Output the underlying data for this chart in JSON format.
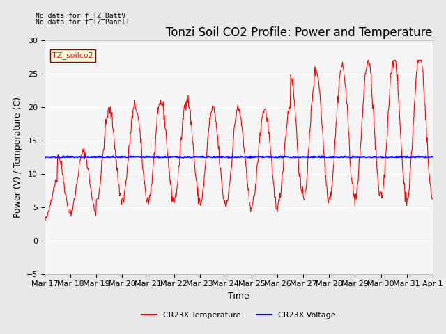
{
  "title": "Tonzi Soil CO2 Profile: Power and Temperature",
  "xlabel": "Time",
  "ylabel": "Power (V) / Temperature (C)",
  "ylim": [
    -5,
    30
  ],
  "yticks": [
    -5,
    0,
    5,
    10,
    15,
    20,
    25,
    30
  ],
  "x_labels": [
    "Mar 17",
    "Mar 18",
    "Mar 19",
    "Mar 20",
    "Mar 21",
    "Mar 22",
    "Mar 23",
    "Mar 24",
    "Mar 25",
    "Mar 26",
    "Mar 27",
    "Mar 28",
    "Mar 29",
    "Mar 30",
    "Mar 31",
    "Apr 1"
  ],
  "no_data_text1": "No data for f_TZ_BattV",
  "no_data_text2": "No data for f_TZ_PanelT",
  "legend_label_box": "TZ_soilco2",
  "legend_label_red": "CR23X Temperature",
  "legend_label_blue": "CR23X Voltage",
  "temp_color": "#FF0000",
  "voltage_color": "#0000FF",
  "background_color": "#E8E8E8",
  "plot_bg_color": "#F5F5F5",
  "voltage_value": 12.5,
  "title_fontsize": 12,
  "axis_fontsize": 9,
  "tick_fontsize": 8
}
